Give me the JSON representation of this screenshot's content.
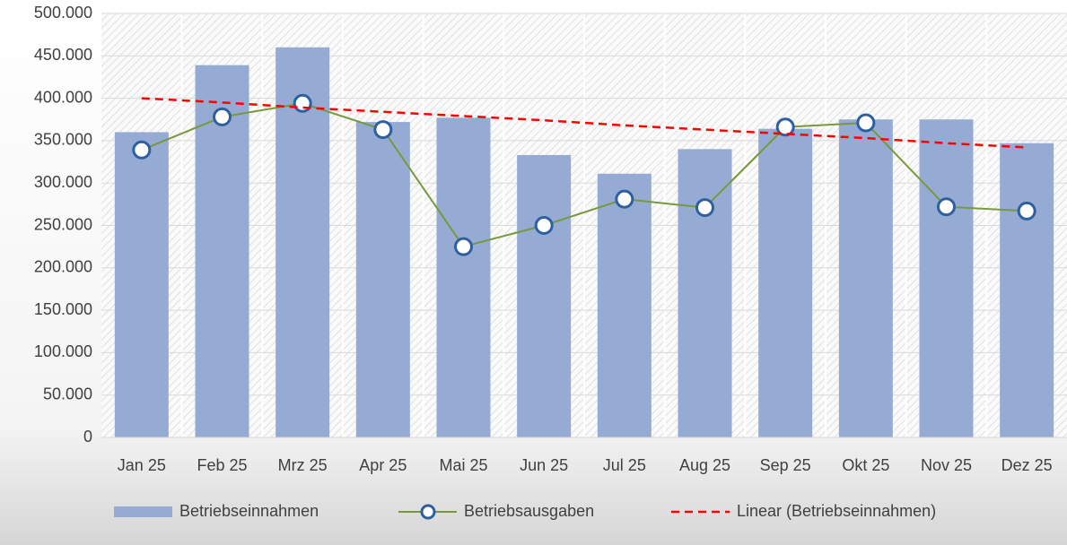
{
  "chart_data": {
    "type": "bar",
    "categories": [
      "Jan 25",
      "Feb 25",
      "Mrz 25",
      "Apr 25",
      "Mai 25",
      "Jun 25",
      "Jul 25",
      "Aug 25",
      "Sep 25",
      "Okt 25",
      "Nov 25",
      "Dez 25"
    ],
    "series": [
      {
        "name": "Betriebseinnahmen",
        "type": "bar",
        "color": "#95abd3",
        "values": [
          360000,
          439000,
          460000,
          372000,
          377000,
          333000,
          311000,
          340000,
          364000,
          375000,
          375000,
          347000
        ]
      },
      {
        "name": "Betriebsausgaben",
        "type": "line",
        "color": "#77993c",
        "marker_color": "#2e5f9e",
        "values": [
          339000,
          378000,
          394000,
          363000,
          225000,
          250000,
          281000,
          271000,
          366000,
          371000,
          272000,
          267000
        ]
      },
      {
        "name": "Linear (Betriebseinnahmen)",
        "type": "line",
        "dashed": true,
        "color": "#ff0000",
        "values": [
          400000,
          395000,
          389000,
          384000,
          379000,
          374000,
          368000,
          363000,
          358000,
          353000,
          347000,
          342000
        ]
      }
    ],
    "ylim": [
      0,
      500000
    ],
    "yticks": [
      0,
      {
        "value": 50000,
        "label": "50.000"
      },
      {
        "value": 100000,
        "label": "100.000"
      },
      {
        "value": 150000,
        "label": "150.000"
      },
      {
        "value": 200000,
        "label": "200.000"
      },
      {
        "value": 250000,
        "label": "250.000"
      },
      {
        "value": 300000,
        "label": "300.000"
      },
      {
        "value": 350000,
        "label": "350.000"
      },
      {
        "value": 400000,
        "label": "400.000"
      },
      {
        "value": 450000,
        "label": "450.000"
      },
      {
        "value": 500000,
        "label": "500.000"
      }
    ],
    "grid": true,
    "legend": "bottom"
  }
}
